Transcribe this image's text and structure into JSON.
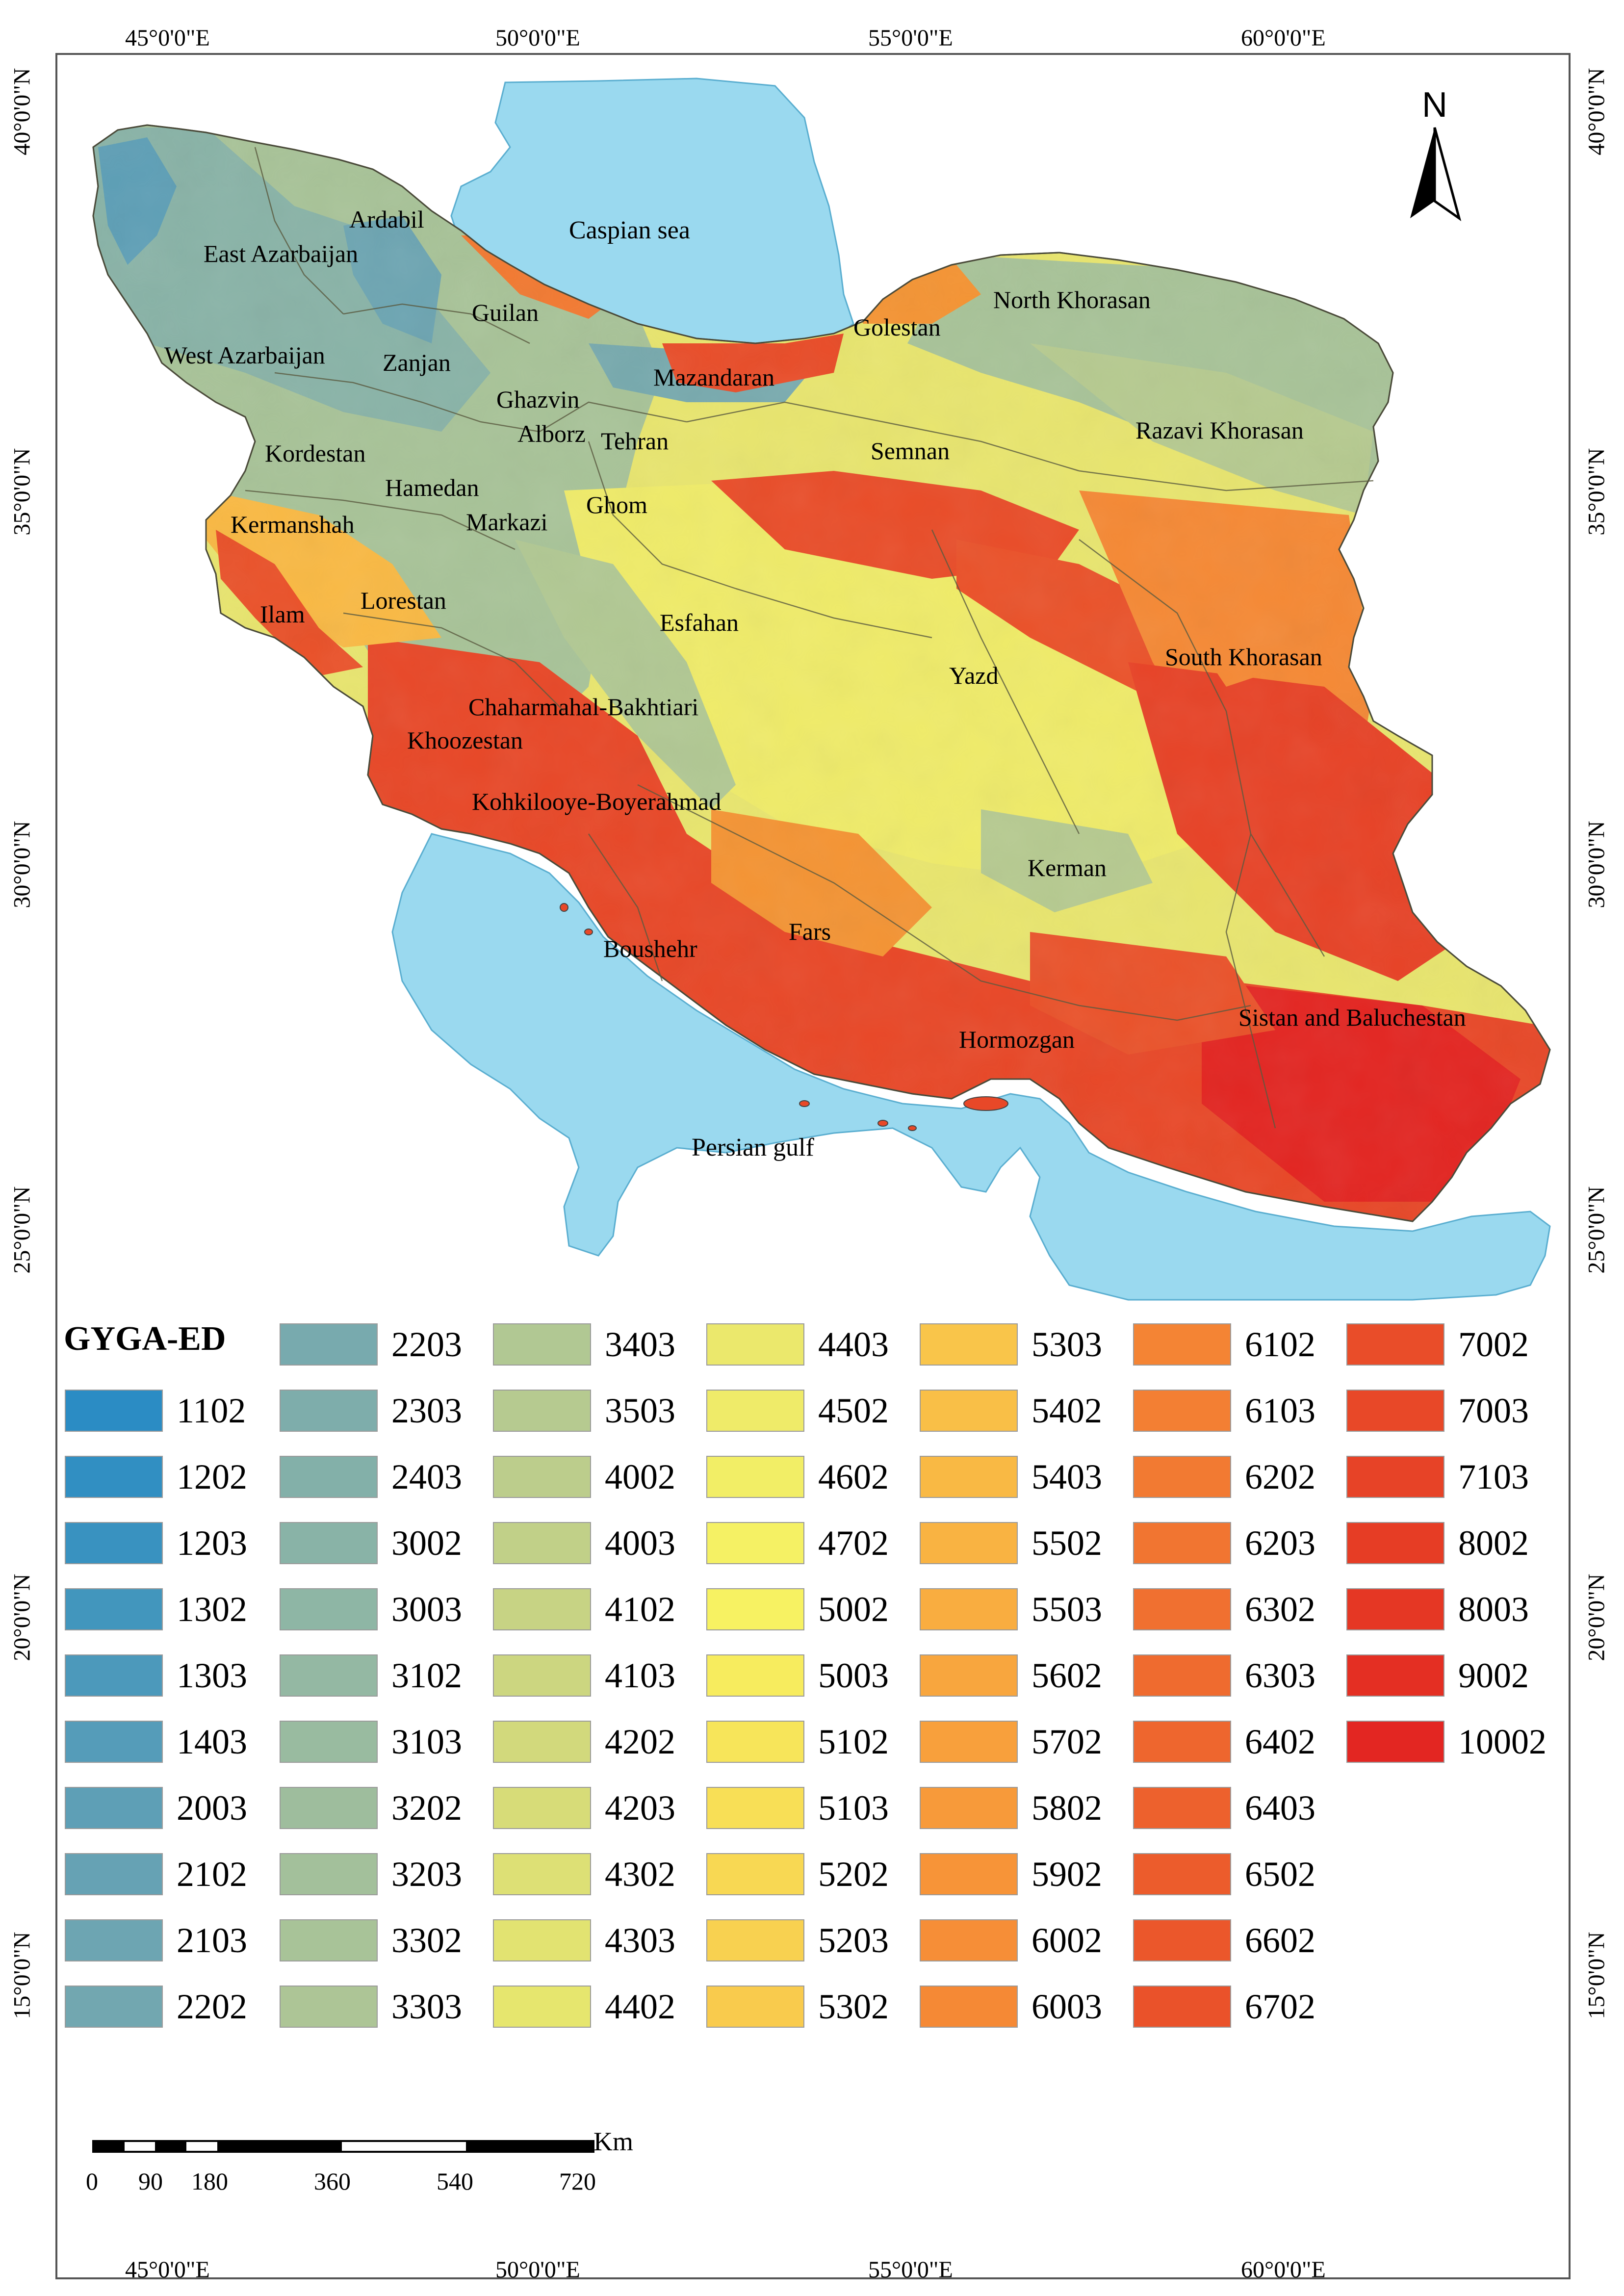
{
  "map": {
    "colors": {
      "sea": "#9ad9ef",
      "frame": "#555555",
      "boundary": "#6b6b4a"
    },
    "coords": {
      "lon_top": [
        "45°0'0\"E",
        "50°0'0\"E",
        "55°0'0\"E",
        "60°0'0\"E"
      ],
      "lon_bottom": [
        "45°0'0\"E",
        "50°0'0\"E",
        "55°0'0\"E",
        "60°0'0\"E"
      ],
      "lat_left": [
        "40°0'0\"N",
        "35°0'0\"N",
        "30°0'0\"N",
        "25°0'0\"N",
        "20°0'0\"N",
        "15°0'0\"N"
      ],
      "lat_right": [
        "40°0'0\"N",
        "35°0'0\"N",
        "30°0'0\"N",
        "25°0'0\"N",
        "20°0'0\"N",
        "15°0'0\"N"
      ]
    },
    "north_arrow": {
      "label": "N",
      "icon": "north-arrow-icon"
    },
    "water_labels": [
      {
        "id": "caspian",
        "text": "Caspian sea"
      },
      {
        "id": "gulf",
        "text": "Persian gulf"
      }
    ],
    "province_labels": [
      "Ardabil",
      "East Azarbaijan",
      "Guilan",
      "West Azarbaijan",
      "Zanjan",
      "Ghazvin",
      "Mazandaran",
      "Golestan",
      "North Khorasan",
      "Alborz",
      "Tehran",
      "Semnan",
      "Razavi Khorasan",
      "Kordestan",
      "Hamedan",
      "Ghom",
      "Markazi",
      "Kermanshah",
      "Ilam",
      "Lorestan",
      "Esfahan",
      "Yazd",
      "South Khorasan",
      "Chaharmahal-Bakhtiari",
      "Khoozestan",
      "Kohkilooye-Boyerahmad",
      "Kerman",
      "Fars",
      "Boushehr",
      "Sistan and Baluchestan",
      "Hormozgan"
    ],
    "scale_bar": {
      "unit": "Km",
      "ticks": [
        "0",
        "90",
        "180",
        "360",
        "540",
        "720"
      ]
    }
  },
  "legend": {
    "title": "GYGA-ED",
    "columns": [
      [
        {
          "code": "1102",
          "color": "#2b8cc4"
        },
        {
          "code": "1202",
          "color": "#318fc2"
        },
        {
          "code": "1203",
          "color": "#3992c0"
        },
        {
          "code": "1302",
          "color": "#4296bd"
        },
        {
          "code": "1303",
          "color": "#4c99bb"
        },
        {
          "code": "1403",
          "color": "#559cb9"
        },
        {
          "code": "2003",
          "color": "#5e9fb6"
        },
        {
          "code": "2102",
          "color": "#66a2b4"
        },
        {
          "code": "2103",
          "color": "#6da5b2"
        },
        {
          "code": "2202",
          "color": "#72a7b0"
        }
      ],
      [
        {
          "code": "2203",
          "color": "#78aaae"
        },
        {
          "code": "2303",
          "color": "#7eadab"
        },
        {
          "code": "2403",
          "color": "#83b0a9"
        },
        {
          "code": "3002",
          "color": "#89b3a7"
        },
        {
          "code": "3003",
          "color": "#8eb6a5"
        },
        {
          "code": "3102",
          "color": "#94b8a3"
        },
        {
          "code": "3103",
          "color": "#99bba0"
        },
        {
          "code": "3202",
          "color": "#9ebd9d"
        },
        {
          "code": "3203",
          "color": "#a3c09b"
        },
        {
          "code": "3302",
          "color": "#a8c398"
        },
        {
          "code": "3303",
          "color": "#adc596"
        }
      ],
      [
        {
          "code": "3403",
          "color": "#b1c893"
        },
        {
          "code": "3503",
          "color": "#b6ca90"
        },
        {
          "code": "4002",
          "color": "#bccd8c"
        },
        {
          "code": "4003",
          "color": "#c1d088"
        },
        {
          "code": "4102",
          "color": "#c7d384"
        },
        {
          "code": "4103",
          "color": "#ccd680"
        },
        {
          "code": "4202",
          "color": "#d2d97c"
        },
        {
          "code": "4203",
          "color": "#d7dc78"
        },
        {
          "code": "4302",
          "color": "#dde075"
        },
        {
          "code": "4303",
          "color": "#e2e371"
        },
        {
          "code": "4402",
          "color": "#e6e66e"
        }
      ],
      [
        {
          "code": "4403",
          "color": "#ebe86c"
        },
        {
          "code": "4502",
          "color": "#efeb69"
        },
        {
          "code": "4602",
          "color": "#f2ee66"
        },
        {
          "code": "4702",
          "color": "#f5f164"
        },
        {
          "code": "5002",
          "color": "#f7f262"
        },
        {
          "code": "5003",
          "color": "#f7ec5e"
        },
        {
          "code": "5102",
          "color": "#f7e55a"
        },
        {
          "code": "5103",
          "color": "#f8df56"
        },
        {
          "code": "5202",
          "color": "#f8d853"
        },
        {
          "code": "5203",
          "color": "#f8d150"
        },
        {
          "code": "5302",
          "color": "#f9cb4d"
        }
      ],
      [
        {
          "code": "5303",
          "color": "#f9c54a"
        },
        {
          "code": "5402",
          "color": "#f9bf47"
        },
        {
          "code": "5403",
          "color": "#f9b944"
        },
        {
          "code": "5502",
          "color": "#f9b342"
        },
        {
          "code": "5503",
          "color": "#f9ad40"
        },
        {
          "code": "5602",
          "color": "#f8a63e"
        },
        {
          "code": "5702",
          "color": "#f8a03c"
        },
        {
          "code": "5802",
          "color": "#f79a3a"
        },
        {
          "code": "5902",
          "color": "#f79438"
        },
        {
          "code": "6002",
          "color": "#f68e37"
        },
        {
          "code": "6003",
          "color": "#f58935"
        }
      ],
      [
        {
          "code": "6102",
          "color": "#f48434"
        },
        {
          "code": "6103",
          "color": "#f37f33"
        },
        {
          "code": "6202",
          "color": "#f27a32"
        },
        {
          "code": "6203",
          "color": "#f17531"
        },
        {
          "code": "6302",
          "color": "#f07030"
        },
        {
          "code": "6303",
          "color": "#ef6b2f"
        },
        {
          "code": "6402",
          "color": "#ee662e"
        },
        {
          "code": "6403",
          "color": "#ed612d"
        },
        {
          "code": "6502",
          "color": "#ec5c2c"
        },
        {
          "code": "6602",
          "color": "#eb572b"
        },
        {
          "code": "6702",
          "color": "#ea522a"
        }
      ],
      [
        {
          "code": "7002",
          "color": "#e94d29"
        },
        {
          "code": "7003",
          "color": "#e84828"
        },
        {
          "code": "7103",
          "color": "#e74327"
        },
        {
          "code": "8002",
          "color": "#e63d25"
        },
        {
          "code": "8003",
          "color": "#e53724"
        },
        {
          "code": "9002",
          "color": "#e42f23"
        },
        {
          "code": "10002",
          "color": "#e32622"
        }
      ]
    ]
  }
}
